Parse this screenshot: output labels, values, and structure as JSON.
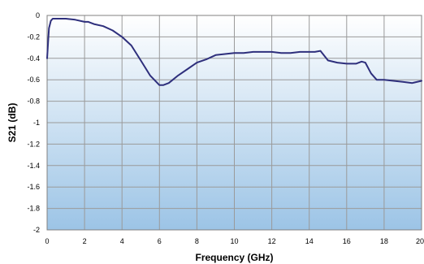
{
  "chart_data": {
    "type": "line",
    "title": "",
    "xlabel": "Frequency (GHz)",
    "ylabel": "S21 (dB)",
    "xlim": [
      0,
      20
    ],
    "ylim": [
      -2,
      0
    ],
    "xticks": [
      "0",
      "2",
      "4",
      "6",
      "8",
      "10",
      "12",
      "14",
      "16",
      "18",
      "20"
    ],
    "yticks": [
      "0",
      "-0.2",
      "-0.4",
      "-0.6",
      "-0.8",
      "-1",
      "-1.2",
      "-1.4",
      "-1.6",
      "-1.8",
      "-2"
    ],
    "grid": true,
    "legend": "none",
    "colors": {
      "line": "#2e2f7c",
      "plot_bg_top": "#ffffff",
      "plot_bg_bottom": "#9cc4e6",
      "grid": "#9a9a9a"
    },
    "series": [
      {
        "name": "",
        "x": [
          0.0,
          0.05,
          0.1,
          0.2,
          0.3,
          0.5,
          1.0,
          1.5,
          2.0,
          2.2,
          2.5,
          3.0,
          3.5,
          4.0,
          4.5,
          5.0,
          5.5,
          6.0,
          6.2,
          6.5,
          7.0,
          7.5,
          8.0,
          8.5,
          9.0,
          9.5,
          10.0,
          10.5,
          11.0,
          11.5,
          12.0,
          12.5,
          13.0,
          13.5,
          14.0,
          14.3,
          14.6,
          15.0,
          15.5,
          16.0,
          16.5,
          16.8,
          17.0,
          17.3,
          17.6,
          18.0,
          18.5,
          19.0,
          19.5,
          20.0
        ],
        "y": [
          -0.4,
          -0.25,
          -0.12,
          -0.05,
          -0.03,
          -0.03,
          -0.03,
          -0.04,
          -0.06,
          -0.06,
          -0.08,
          -0.1,
          -0.14,
          -0.2,
          -0.28,
          -0.42,
          -0.56,
          -0.65,
          -0.65,
          -0.63,
          -0.56,
          -0.5,
          -0.44,
          -0.41,
          -0.37,
          -0.36,
          -0.35,
          -0.35,
          -0.34,
          -0.34,
          -0.34,
          -0.35,
          -0.35,
          -0.34,
          -0.34,
          -0.34,
          -0.33,
          -0.42,
          -0.44,
          -0.45,
          -0.45,
          -0.43,
          -0.44,
          -0.54,
          -0.6,
          -0.6,
          -0.61,
          -0.62,
          -0.63,
          -0.61
        ]
      }
    ]
  }
}
